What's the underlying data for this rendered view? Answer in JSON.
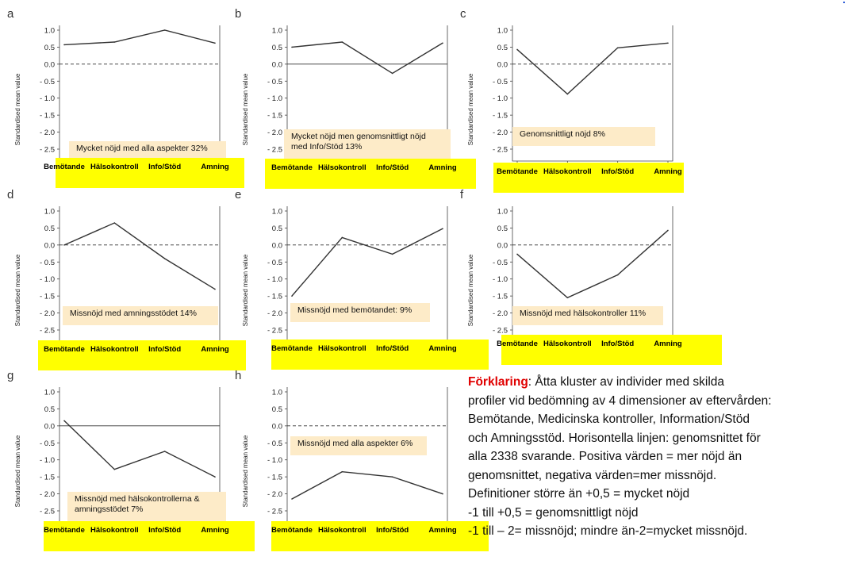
{
  "colors": {
    "caption_bg": "#fdebc8",
    "axis_box_bg": "#ffff00",
    "legend_lead": "#e00000",
    "line": "#333333"
  },
  "chart_data": [
    {
      "type": "line",
      "id": "a",
      "caption": "Mycket nöjd med alla aspekter 32%",
      "categories": [
        "Bemötande",
        "Hälsokontroll",
        "Info/Stöd",
        "Amning"
      ],
      "values": [
        0.57,
        0.65,
        1.0,
        0.62
      ],
      "ylabel": "Standardised mean value",
      "yticks": [
        "1.0",
        "0.5",
        "0.0",
        "- 0.5",
        "- 1.0",
        "- 1.5",
        "- 2.0",
        "- 2.5"
      ],
      "ylim": [
        -2.5,
        1.0
      ],
      "reference_line": "dashed"
    },
    {
      "type": "line",
      "id": "b",
      "caption": "Mycket nöjd men genomsnittligt nöjd med Info/Stöd 13%",
      "categories": [
        "Bemötande",
        "Hälsokontroll",
        "Info/Stöd",
        "Amning"
      ],
      "values": [
        0.5,
        0.65,
        -0.27,
        0.62
      ],
      "ylabel": "Standardised mean value",
      "yticks": [
        "1.0",
        "0.5",
        "0.0",
        "- 0.5",
        "- 1.0",
        "- 1.5",
        "- 2.0",
        "- 2.5"
      ],
      "ylim": [
        -2.5,
        1.0
      ],
      "reference_line": "solid"
    },
    {
      "type": "line",
      "id": "c",
      "caption": "Genomsnittligt nöjd 8%",
      "categories": [
        "Bemötande",
        "Hälsokontroll",
        "Info/Stöd",
        "Amning"
      ],
      "values": [
        0.43,
        -0.88,
        0.48,
        0.62
      ],
      "ylabel": "Standardised mean value",
      "yticks": [
        "1.0",
        "0.5",
        "0.0",
        "- 0.5",
        "- 1.0",
        "- 1.5",
        "- 2.0",
        "- 2.5"
      ],
      "ylim": [
        -2.5,
        1.0
      ],
      "reference_line": "dashed"
    },
    {
      "type": "line",
      "id": "d",
      "caption": "Missnöjd med amningsstödet 14%",
      "categories": [
        "Bemötande",
        "Hälsokontroll",
        "Info/Stöd",
        "Amning"
      ],
      "values": [
        0.0,
        0.65,
        -0.4,
        -1.3
      ],
      "ylabel": "Standardised mean value",
      "yticks": [
        "1.0",
        "0.5",
        "0.0",
        "- 0.5",
        "- 1.0",
        "- 1.5",
        "- 2.0",
        "- 2.5"
      ],
      "ylim": [
        -2.5,
        1.0
      ],
      "reference_line": "dashed"
    },
    {
      "type": "line",
      "id": "e",
      "caption": "Missnöjd med bemötandet: 9%",
      "categories": [
        "Bemötande",
        "Hälsokontroll",
        "Info/Stöd",
        "Amning"
      ],
      "values": [
        -1.5,
        0.22,
        -0.27,
        0.48
      ],
      "ylabel": "Standardised mean value",
      "yticks": [
        "1.0",
        "0.5",
        "0.0",
        "- 0.5",
        "- 1.0",
        "- 1.5",
        "- 2.0",
        "- 2.5"
      ],
      "ylim": [
        -2.5,
        1.0
      ],
      "reference_line": "dashed"
    },
    {
      "type": "line",
      "id": "f",
      "caption": "Missnöjd med hälsokontroller 11%",
      "categories": [
        "Bemötande",
        "Hälsokontroll",
        "Info/Stöd",
        "Amning"
      ],
      "values": [
        -0.27,
        -1.55,
        -0.88,
        0.43
      ],
      "ylabel": "Standardised mean value",
      "yticks": [
        "1.0",
        "0.5",
        "0.0",
        "- 0.5",
        "- 1.0",
        "- 1.5",
        "- 2.0",
        "- 2.5"
      ],
      "ylim": [
        -2.5,
        1.0
      ],
      "reference_line": "dashed"
    },
    {
      "type": "line",
      "id": "g",
      "caption": "Missnöjd med hälsokontrollerna & amningsstödet 7%",
      "categories": [
        "Bemötande",
        "Hälsokontroll",
        "Info/Stöd",
        "Amning"
      ],
      "values": [
        0.15,
        -1.28,
        -0.75,
        -1.5
      ],
      "ylabel": "Standardised mean value",
      "yticks": [
        "1.0",
        "0.5",
        "0.0",
        "- 0.5",
        "- 1.0",
        "- 1.5",
        "- 2.0",
        "- 2.5"
      ],
      "ylim": [
        -2.5,
        1.0
      ],
      "reference_line": "solid"
    },
    {
      "type": "line",
      "id": "h",
      "caption": "Missnöjd med alla aspekter 6%",
      "categories": [
        "Bemötande",
        "Hälsokontroll",
        "Info/Stöd",
        "Amning"
      ],
      "values": [
        -2.15,
        -1.35,
        -1.5,
        -2.0
      ],
      "ylabel": "Standardised mean value",
      "yticks": [
        "1.0",
        "0.5",
        "0.0",
        "- 0.5",
        "- 1.0",
        "- 1.5",
        "- 2.0",
        "- 2.5"
      ],
      "ylim": [
        -2.5,
        1.0
      ],
      "reference_line": "dashed"
    }
  ],
  "legend": {
    "lead": "Förklaring",
    "lines": [
      ": Åtta kluster av individer med skilda",
      "profiler vid bedömning av 4 dimensioner av eftervården:",
      "Bemötande, Medicinska kontroller, Information/Stöd",
      "och Amningsstöd. Horisontella linjen: genomsnittet för",
      "alla 2338 svarande. Positiva värden = mer nöjd än",
      "genomsnittet, negativa värden=mer missnöjd.",
      "Definitioner större än +0,5 = mycket nöjd",
      "-1 till +0,5 = genomsnittligt nöjd",
      "-1 till – 2= missnöjd;  mindre än-2=mycket missnöjd."
    ]
  }
}
